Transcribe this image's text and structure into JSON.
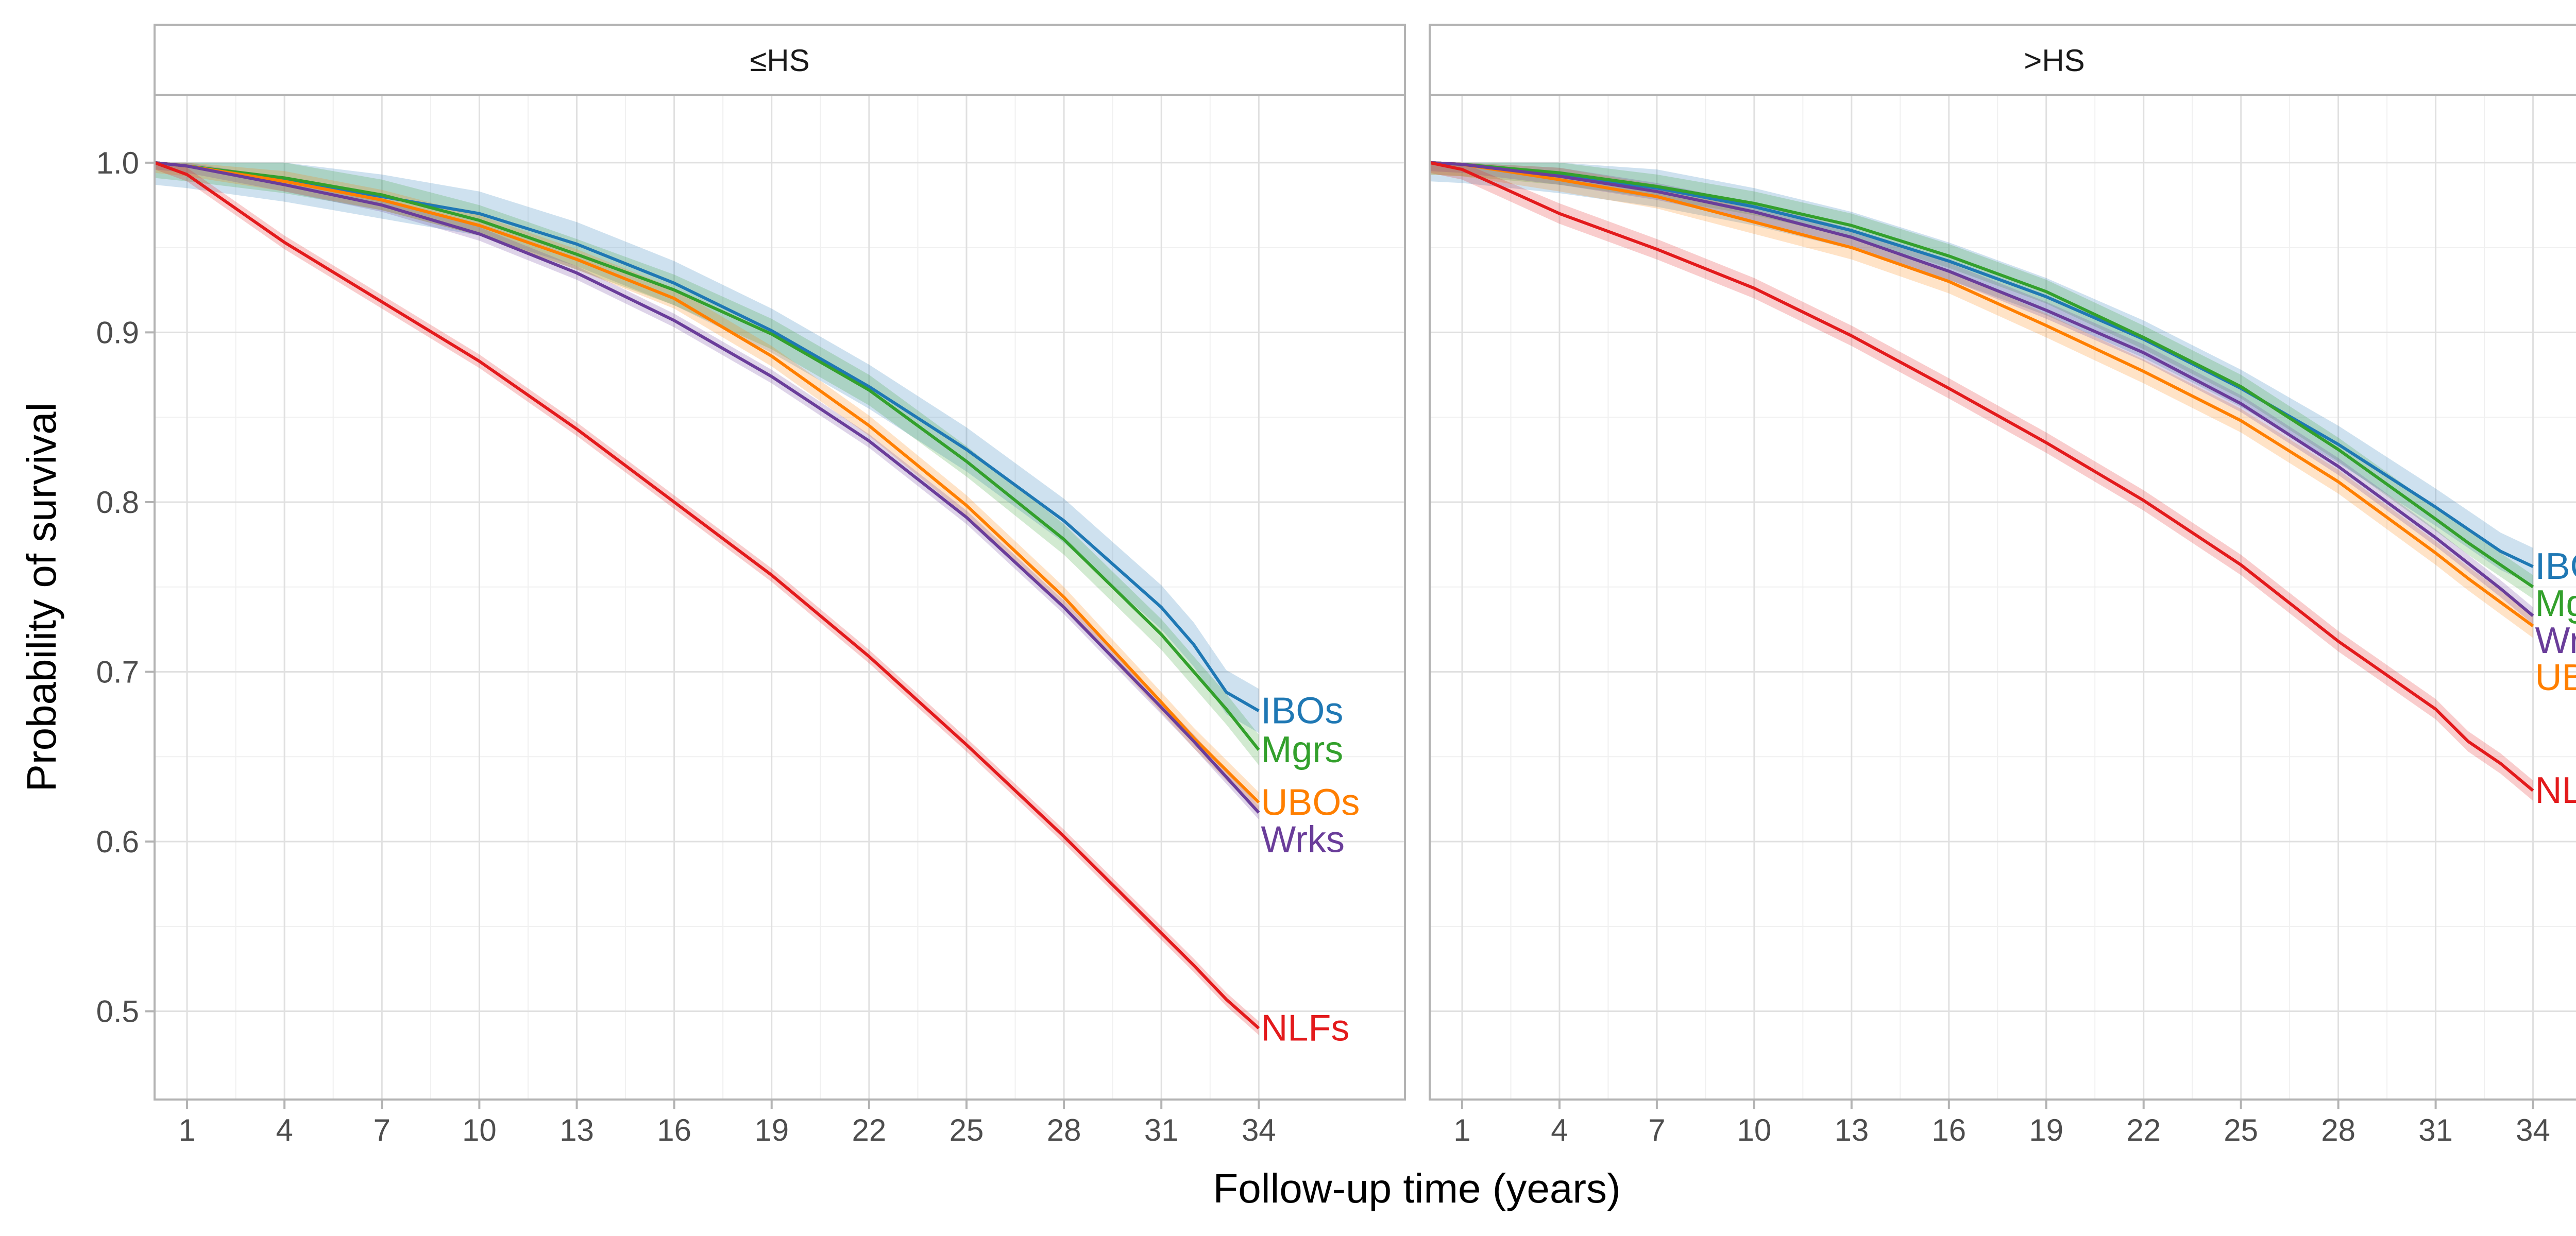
{
  "chart_data": {
    "type": "line",
    "xlabel": "Follow-up time (years)",
    "ylabel": "Probability of survival",
    "x_ticks": [
      1,
      4,
      7,
      10,
      13,
      16,
      19,
      22,
      25,
      28,
      31,
      34
    ],
    "y_ticks": [
      0.5,
      0.6,
      0.7,
      0.8,
      0.9,
      1.0
    ],
    "y_tick_labels": [
      "0.5",
      "0.6",
      "0.7",
      "0.8",
      "0.9",
      "1.0"
    ],
    "xlim": [
      0,
      38.5
    ],
    "ylim": [
      0.448,
      1.04
    ],
    "grid": true,
    "legend": "direct labels at line ends",
    "x": [
      0,
      1,
      4,
      7,
      10,
      13,
      16,
      19,
      22,
      25,
      28,
      31,
      32,
      33,
      34
    ],
    "colors": {
      "IBOs": "#1f78b4",
      "Mgrs": "#33a02c",
      "UBOs": "#ff7f00",
      "Wrks": "#6a3d9a",
      "NLFs": "#e31a1c"
    },
    "panels": [
      {
        "strip": "≤HS",
        "series": [
          {
            "name": "IBOs",
            "values": [
              1.0,
              0.998,
              0.99,
              0.98,
              0.97,
              0.952,
              0.929,
              0.901,
              0.868,
              0.831,
              0.789,
              0.738,
              0.716,
              0.688,
              0.677
            ],
            "band": 0.013
          },
          {
            "name": "Mgrs",
            "values": [
              1.0,
              0.998,
              0.991,
              0.981,
              0.966,
              0.946,
              0.925,
              0.899,
              0.866,
              0.824,
              0.778,
              0.722,
              0.7,
              0.678,
              0.654
            ],
            "band": 0.009
          },
          {
            "name": "UBOs",
            "values": [
              1.0,
              0.998,
              0.989,
              0.978,
              0.963,
              0.943,
              0.92,
              0.886,
              0.845,
              0.798,
              0.744,
              0.682,
              0.661,
              0.642,
              0.623
            ],
            "band": 0.006
          },
          {
            "name": "Wrks",
            "values": [
              1.0,
              0.998,
              0.987,
              0.975,
              0.958,
              0.935,
              0.907,
              0.874,
              0.836,
              0.791,
              0.738,
              0.679,
              0.659,
              0.638,
              0.617
            ],
            "band": 0.004
          },
          {
            "name": "NLFs",
            "values": [
              1.0,
              0.993,
              0.953,
              0.918,
              0.883,
              0.843,
              0.8,
              0.757,
              0.709,
              0.657,
              0.603,
              0.546,
              0.527,
              0.507,
              0.49
            ],
            "band": 0.004
          }
        ]
      },
      {
        "strip": ">HS",
        "series": [
          {
            "name": "IBOs",
            "values": [
              1.0,
              0.999,
              0.993,
              0.985,
              0.974,
              0.96,
              0.942,
              0.921,
              0.896,
              0.867,
              0.834,
              0.797,
              0.784,
              0.771,
              0.762
            ],
            "band": 0.011
          },
          {
            "name": "Mgrs",
            "values": [
              1.0,
              0.999,
              0.994,
              0.986,
              0.976,
              0.963,
              0.945,
              0.924,
              0.897,
              0.868,
              0.831,
              0.79,
              0.776,
              0.763,
              0.75
            ],
            "band": 0.007
          },
          {
            "name": "UBOs",
            "values": [
              1.0,
              0.999,
              0.99,
              0.98,
              0.965,
              0.95,
              0.93,
              0.904,
              0.877,
              0.848,
              0.812,
              0.77,
              0.755,
              0.741,
              0.727
            ],
            "band": 0.007
          },
          {
            "name": "Wrks",
            "values": [
              1.0,
              0.999,
              0.992,
              0.983,
              0.971,
              0.956,
              0.936,
              0.913,
              0.888,
              0.858,
              0.821,
              0.779,
              0.764,
              0.749,
              0.733
            ],
            "band": 0.005
          },
          {
            "name": "NLFs",
            "values": [
              1.0,
              0.996,
              0.97,
              0.949,
              0.926,
              0.898,
              0.867,
              0.835,
              0.801,
              0.763,
              0.718,
              0.678,
              0.659,
              0.646,
              0.63
            ],
            "band": 0.006
          }
        ]
      }
    ]
  }
}
